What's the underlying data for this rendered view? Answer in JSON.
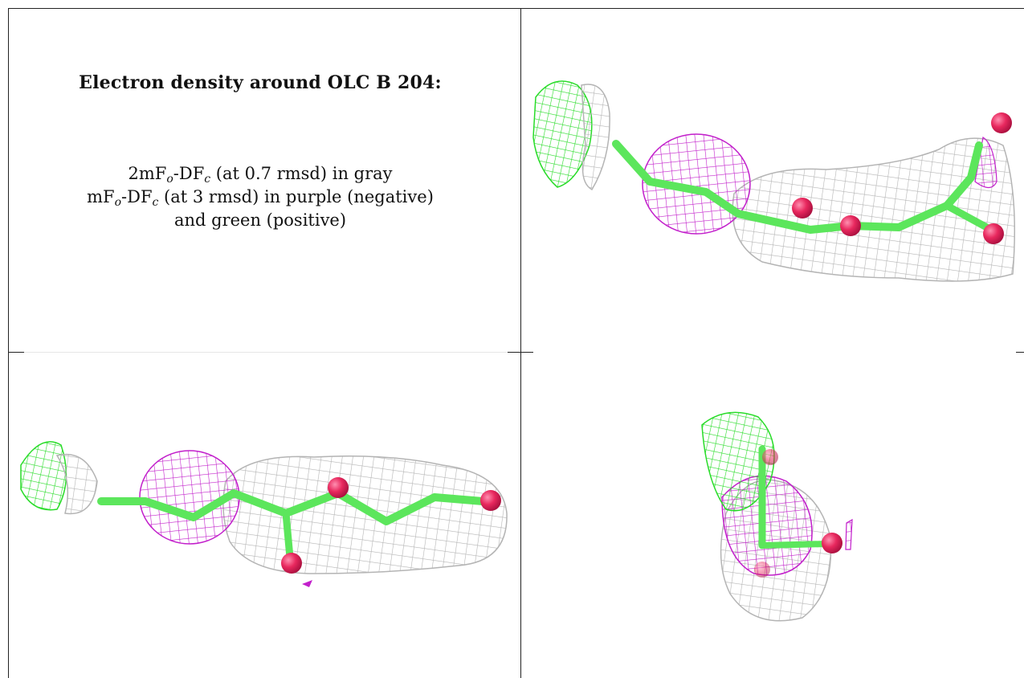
{
  "caption": {
    "title": "Electron density around OLC B 204:",
    "line1_prefix": "2mF",
    "line1_suffix": " (at 0.7 rmsd) in gray",
    "line2_prefix": "mF",
    "line2_suffix": " (at 3 rmsd) in purple (negative)",
    "line3": "and green (positive)",
    "sub_o": "o",
    "df": "-DF",
    "sub_c": "c"
  },
  "colors": {
    "mesh_gray": "#b9b9b9",
    "mesh_purple": "#c020c8",
    "mesh_green": "#2de02d",
    "carbon_green": "#5ce65c",
    "oxygen_red": "#e8285e"
  },
  "panels": [
    {
      "view": "top-right"
    },
    {
      "view": "bottom-left"
    },
    {
      "view": "bottom-right"
    }
  ]
}
